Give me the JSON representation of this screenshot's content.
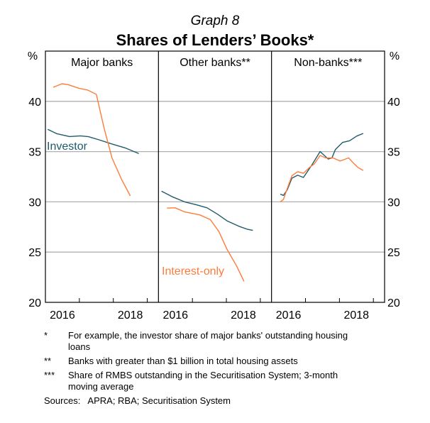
{
  "graph_label": "Graph 8",
  "title": "Shares of Lenders’ Books*",
  "colors": {
    "investor": "#1f5b6b",
    "interest_only": "#ff7b3a",
    "grid": "#b0b0b0"
  },
  "chart_data": {
    "type": "line",
    "title": "Shares of Lenders’ Books*",
    "ylabel_left": "%",
    "ylabel_right": "%",
    "ylim": [
      20,
      45
    ],
    "yticks": [
      20,
      25,
      30,
      35,
      40
    ],
    "xlim": [
      2016.0,
      2019.33
    ],
    "xtick_labels": [
      "2016",
      "2018"
    ],
    "grid": true,
    "series_labels": {
      "investor": "Investor",
      "interest_only": "Interest-only"
    },
    "panels": [
      {
        "title": "Major banks",
        "series": [
          {
            "key": "investor",
            "x": [
              2016.07,
              2016.33,
              2016.71,
              2017.03,
              2017.27,
              2017.58,
              2017.93,
              2018.35,
              2018.75
            ],
            "y": [
              37.21,
              36.79,
              36.5,
              36.57,
              36.48,
              36.17,
              35.79,
              35.37,
              34.8
            ]
          },
          {
            "key": "interest_only",
            "x": [
              2016.23,
              2016.49,
              2016.68,
              2016.99,
              2017.24,
              2017.5,
              2017.72,
              2017.96,
              2018.24,
              2018.5
            ],
            "y": [
              41.4,
              41.75,
              41.65,
              41.3,
              41.13,
              40.69,
              37.45,
              34.38,
              32.25,
              30.59
            ]
          }
        ]
      },
      {
        "title": "Other banks**",
        "series": [
          {
            "key": "investor",
            "x": [
              2016.09,
              2016.43,
              2016.77,
              2017.12,
              2017.43,
              2017.74,
              2018.02,
              2018.37,
              2018.61,
              2018.78
            ],
            "y": [
              31.06,
              30.47,
              30.0,
              29.7,
              29.41,
              28.77,
              28.11,
              27.57,
              27.28,
              27.16
            ]
          },
          {
            "key": "interest_only",
            "x": [
              2016.25,
              2016.49,
              2016.77,
              2017.22,
              2017.53,
              2017.78,
              2018.02,
              2018.3,
              2018.52
            ],
            "y": [
              29.38,
              29.41,
              29.0,
              28.7,
              28.23,
              27.04,
              25.27,
              23.62,
              22.08
            ]
          }
        ]
      },
      {
        "title": "Non-banks***",
        "series": [
          {
            "key": "investor",
            "x": [
              2016.26,
              2016.35,
              2016.46,
              2016.6,
              2016.77,
              2016.94,
              2017.19,
              2017.43,
              2017.67,
              2017.78,
              2017.88,
              2018.09,
              2018.3,
              2018.51,
              2018.7
            ],
            "y": [
              30.76,
              30.64,
              31.18,
              32.36,
              32.65,
              32.43,
              33.67,
              35.01,
              34.26,
              34.37,
              35.2,
              35.91,
              36.08,
              36.55,
              36.81
            ]
          },
          {
            "key": "interest_only",
            "x": [
              2016.26,
              2016.35,
              2016.46,
              2016.6,
              2016.77,
              2016.94,
              2017.12,
              2017.26,
              2017.43,
              2017.6,
              2017.81,
              2018.02,
              2018.27,
              2018.4,
              2018.54,
              2018.7
            ],
            "y": [
              30.0,
              30.23,
              31.3,
              32.6,
              33.0,
              32.84,
              33.43,
              33.78,
              34.61,
              34.37,
              34.37,
              34.06,
              34.37,
              33.9,
              33.43,
              33.12
            ]
          }
        ]
      }
    ]
  },
  "notes": [
    {
      "mark": "*",
      "text": "For example, the investor share of major banks' outstanding housing loans"
    },
    {
      "mark": "**",
      "text": "Banks with greater than $1 billion in total housing assets"
    },
    {
      "mark": "***",
      "text": "Share of RMBS outstanding in the Securitisation System; 3-month moving average"
    }
  ],
  "sources": "Sources:   APRA; RBA; Securitisation System"
}
